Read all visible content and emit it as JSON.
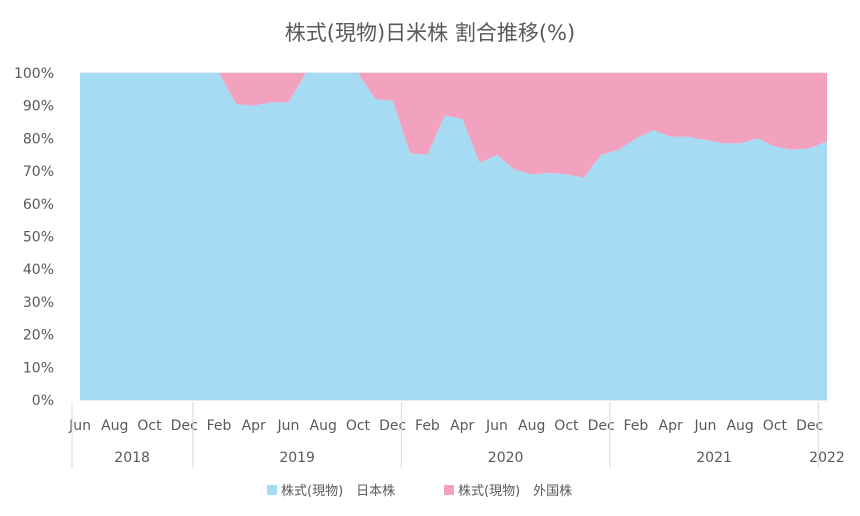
{
  "chart_data": {
    "type": "area",
    "stacked": "percent",
    "title": "株式(現物)日米株 割合推移(%)",
    "xlabel": "",
    "ylabel": "",
    "ylim": [
      0,
      100
    ],
    "yticks": [
      "0%",
      "10%",
      "20%",
      "30%",
      "40%",
      "50%",
      "60%",
      "70%",
      "80%",
      "90%",
      "100%"
    ],
    "grid": true,
    "legend_position": "bottom",
    "x": [
      "2018-06",
      "2018-07",
      "2018-08",
      "2018-09",
      "2018-10",
      "2018-11",
      "2018-12",
      "2019-01",
      "2019-02",
      "2019-03",
      "2019-04",
      "2019-05",
      "2019-06",
      "2019-07",
      "2019-08",
      "2019-09",
      "2019-10",
      "2019-11",
      "2019-12",
      "2020-01",
      "2020-02",
      "2020-03",
      "2020-04",
      "2020-05",
      "2020-06",
      "2020-07",
      "2020-08",
      "2020-09",
      "2020-10",
      "2020-11",
      "2020-12",
      "2021-01",
      "2021-02",
      "2021-03",
      "2021-04",
      "2021-05",
      "2021-06",
      "2021-07",
      "2021-08",
      "2021-09",
      "2021-10",
      "2021-11",
      "2021-12",
      "2022-01"
    ],
    "x_tick_labels": [
      {
        "x": "2018-06",
        "label": "Jun"
      },
      {
        "x": "2018-08",
        "label": "Aug"
      },
      {
        "x": "2018-10",
        "label": "Oct"
      },
      {
        "x": "2018-12",
        "label": "Dec"
      },
      {
        "x": "2019-02",
        "label": "Feb"
      },
      {
        "x": "2019-04",
        "label": "Apr"
      },
      {
        "x": "2019-06",
        "label": "Jun"
      },
      {
        "x": "2019-08",
        "label": "Aug"
      },
      {
        "x": "2019-10",
        "label": "Oct"
      },
      {
        "x": "2019-12",
        "label": "Dec"
      },
      {
        "x": "2020-02",
        "label": "Feb"
      },
      {
        "x": "2020-04",
        "label": "Apr"
      },
      {
        "x": "2020-06",
        "label": "Jun"
      },
      {
        "x": "2020-08",
        "label": "Aug"
      },
      {
        "x": "2020-10",
        "label": "Oct"
      },
      {
        "x": "2020-12",
        "label": "Dec"
      },
      {
        "x": "2021-02",
        "label": "Feb"
      },
      {
        "x": "2021-04",
        "label": "Apr"
      },
      {
        "x": "2021-06",
        "label": "Jun"
      },
      {
        "x": "2021-08",
        "label": "Aug"
      },
      {
        "x": "2021-10",
        "label": "Oct"
      },
      {
        "x": "2021-12",
        "label": "Dec"
      }
    ],
    "year_groups": [
      {
        "label": "2018",
        "from": "2018-06",
        "to": "2018-12"
      },
      {
        "label": "2019",
        "from": "2019-01",
        "to": "2019-12"
      },
      {
        "label": "2020",
        "from": "2020-01",
        "to": "2020-12"
      },
      {
        "label": "2021",
        "from": "2021-01",
        "to": "2021-12"
      },
      {
        "label": "2022",
        "from": "2022-01",
        "to": "2022-01"
      }
    ],
    "series": [
      {
        "name": "株式(現物)　日本株",
        "color": "#a6dcf3",
        "values": [
          100,
          100,
          100,
          100,
          100,
          100,
          100,
          100,
          100,
          90.5,
          90,
          91,
          91,
          100,
          100,
          100,
          100,
          92,
          91.5,
          75.5,
          75,
          87,
          86,
          72.5,
          75,
          70.5,
          69,
          69.5,
          69,
          68,
          75,
          76.5,
          80,
          82.5,
          80.5,
          80.5,
          79.5,
          78.5,
          78.5,
          80,
          77.5,
          76.5,
          77,
          79
        ]
      },
      {
        "name": "株式(現物)　外国株",
        "color": "#f2a1bf",
        "values": [
          0,
          0,
          0,
          0,
          0,
          0,
          0,
          0,
          0,
          9.5,
          10,
          9,
          9,
          0,
          0,
          0,
          0,
          8,
          8.5,
          24.5,
          25,
          13,
          14,
          27.5,
          25,
          29.5,
          31,
          30.5,
          31,
          32,
          25,
          23.5,
          20,
          17.5,
          19.5,
          19.5,
          20.5,
          21.5,
          21.5,
          20,
          22.5,
          23.5,
          23,
          21
        ]
      }
    ]
  },
  "colors": {
    "gridline": "#d9d9d9",
    "axis_text": "#595959",
    "title_text": "#595959",
    "divider": "#d9d9d9"
  }
}
